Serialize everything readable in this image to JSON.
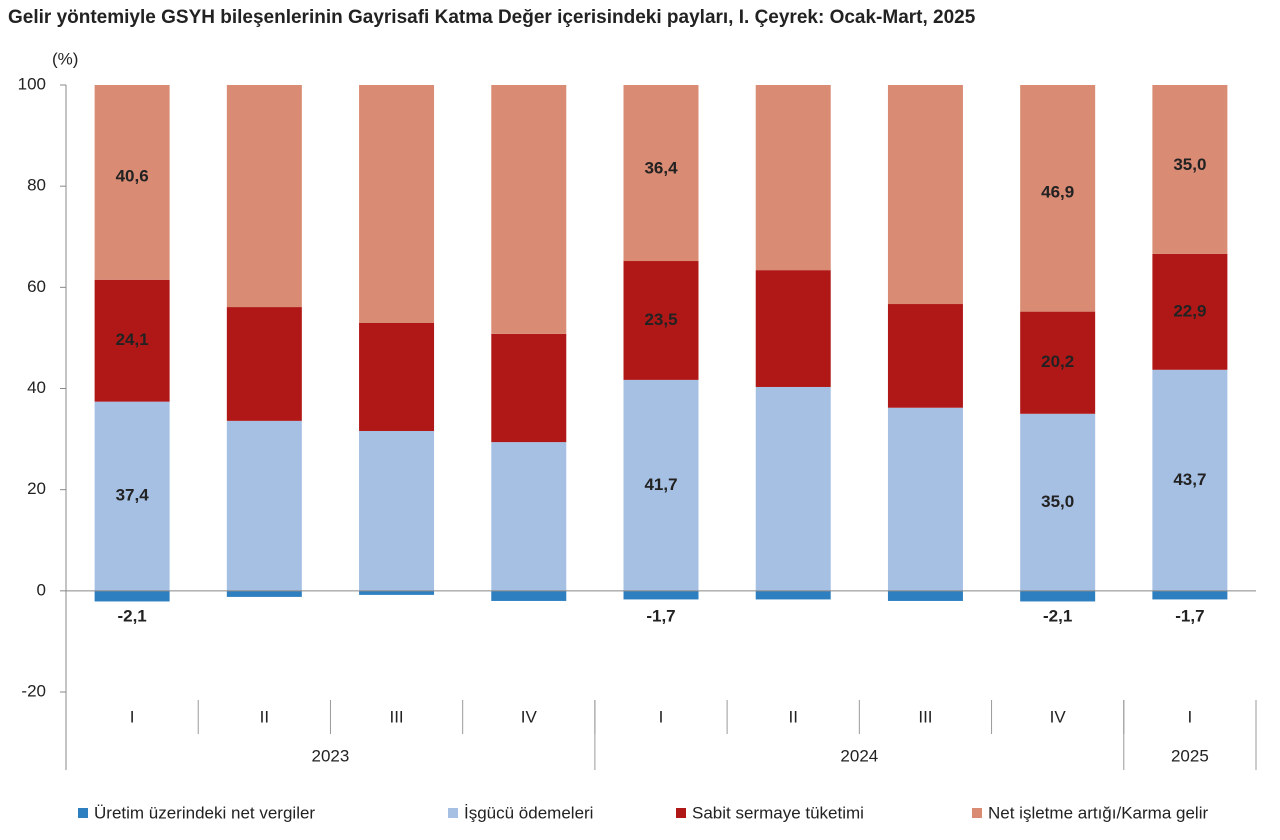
{
  "chart_data": {
    "type": "stacked-bar",
    "title": "Gelir yöntemiyle GSYH bileşenlerinin Gayrisafi Katma Değer içerisindeki payları, I. Çeyrek: Ocak-Mart, 2025",
    "y_label": "(%)",
    "categories": [
      "I",
      "II",
      "III",
      "IV",
      "I",
      "II",
      "III",
      "IV",
      "I"
    ],
    "groups": [
      {
        "label": "2023",
        "span": 4
      },
      {
        "label": "2024",
        "span": 4
      },
      {
        "label": "2025",
        "span": 1
      }
    ],
    "series": [
      {
        "name": "Üretim üzerindeki net vergiler",
        "color": "#2e7fc0",
        "values": [
          -2.1,
          -1.2,
          -0.8,
          -2.0,
          -1.7,
          -1.7,
          -2.0,
          -2.1,
          -1.7
        ],
        "value_labels": [
          "-2,1",
          null,
          null,
          null,
          "-1,7",
          null,
          null,
          "-2,1",
          "-1,7"
        ]
      },
      {
        "name": "İşgücü ödemeleri",
        "color": "#a6c0e4",
        "values": [
          37.4,
          33.6,
          31.6,
          29.4,
          41.7,
          40.3,
          36.2,
          35.0,
          43.7
        ],
        "value_labels": [
          "37,4",
          null,
          null,
          null,
          "41,7",
          null,
          null,
          "35,0",
          "43,7"
        ]
      },
      {
        "name": "Sabit sermaye tüketimi",
        "color": "#b01818",
        "values": [
          24.1,
          22.5,
          21.4,
          21.4,
          23.5,
          23.1,
          20.5,
          20.2,
          22.9
        ],
        "value_labels": [
          "24,1",
          null,
          null,
          null,
          "23,5",
          null,
          null,
          "20,2",
          "22,9"
        ]
      },
      {
        "name": "Net işletme artığı/Karma gelir",
        "color": "#d98b74",
        "values": [
          40.6,
          45.1,
          47.8,
          51.2,
          36.4,
          38.3,
          45.3,
          46.9,
          35.0
        ],
        "value_labels": [
          "40,6",
          null,
          null,
          null,
          "36,4",
          null,
          null,
          "46,9",
          "35,0"
        ]
      }
    ],
    "ylim": [
      -20,
      100
    ],
    "yticks": [
      -20,
      0,
      20,
      40,
      60,
      80,
      100
    ],
    "grid": false,
    "legend": "bottom"
  }
}
